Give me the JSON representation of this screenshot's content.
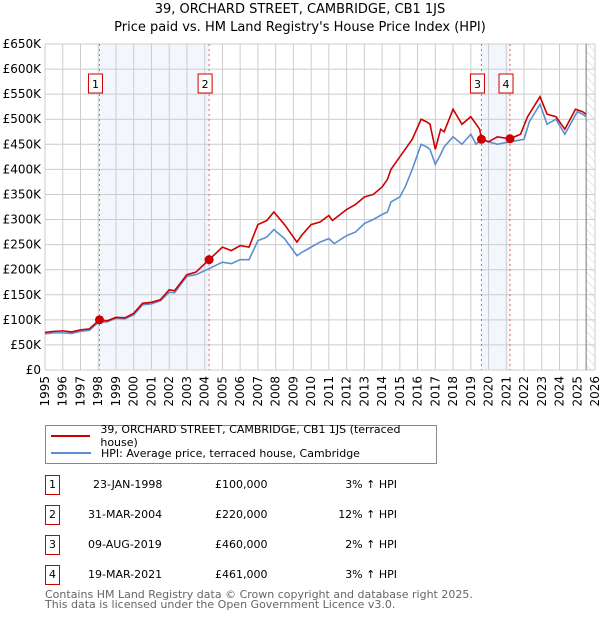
{
  "chart_data": {
    "type": "line",
    "title": "39, ORCHARD STREET, CAMBRIDGE, CB1 1JS",
    "subtitle": "Price paid vs. HM Land Registry's House Price Index (HPI)",
    "ylim": [
      0,
      650000
    ],
    "xlim": [
      1995,
      2026
    ],
    "y_ticks": [
      0,
      50000,
      100000,
      150000,
      200000,
      250000,
      300000,
      350000,
      400000,
      450000,
      500000,
      550000,
      600000,
      650000
    ],
    "y_tick_labels": [
      "£0",
      "£50K",
      "£100K",
      "£150K",
      "£200K",
      "£250K",
      "£300K",
      "£350K",
      "£400K",
      "£450K",
      "£500K",
      "£550K",
      "£600K",
      "£650K"
    ],
    "x_ticks": [
      "1995",
      "1996",
      "1997",
      "1998",
      "1999",
      "2000",
      "2001",
      "2002",
      "2003",
      "2004",
      "2005",
      "2006",
      "2007",
      "2008",
      "2009",
      "2010",
      "2011",
      "2012",
      "2013",
      "2014",
      "2015",
      "2016",
      "2017",
      "2018",
      "2019",
      "2020",
      "2021",
      "2022",
      "2023",
      "2024",
      "2025",
      "2026"
    ],
    "grid": true,
    "forecast_start": 2025.5,
    "series": [
      {
        "name": "39, ORCHARD STREET, CAMBRIDGE, CB1 1JS (terraced house)",
        "color": "#cc0000",
        "x": [
          1995,
          1995.5,
          1996,
          1996.5,
          1997,
          1997.5,
          1998.07,
          1998.5,
          1999,
          1999.5,
          2000,
          2000.5,
          2001,
          2001.5,
          2002,
          2002.3,
          2003,
          2003.5,
          2004.25,
          2005,
          2005.5,
          2006,
          2006.5,
          2007,
          2007.5,
          2007.9,
          2008.5,
          2009.2,
          2009.5,
          2010,
          2010.5,
          2011,
          2011.2,
          2012,
          2012.5,
          2013,
          2013.5,
          2014,
          2014.3,
          2014.5,
          2015,
          2015.3,
          2015.7,
          2016.2,
          2016.5,
          2016.7,
          2017,
          2017.3,
          2017.5,
          2018,
          2018.5,
          2019,
          2019.5,
          2019.6,
          2020,
          2020.5,
          2021.2,
          2021.8,
          2022.2,
          2022.9,
          2023.3,
          2023.8,
          2024.3,
          2024.9,
          2025.3,
          2025.5
        ],
        "y": [
          75000,
          77000,
          78000,
          76000,
          80000,
          82000,
          100000,
          98000,
          105000,
          104000,
          113000,
          133000,
          135000,
          140000,
          160000,
          158000,
          190000,
          195000,
          220000,
          245000,
          238000,
          248000,
          245000,
          290000,
          298000,
          315000,
          290000,
          255000,
          270000,
          290000,
          295000,
          308000,
          298000,
          320000,
          330000,
          345000,
          350000,
          365000,
          380000,
          400000,
          425000,
          440000,
          460000,
          500000,
          495000,
          490000,
          440000,
          480000,
          475000,
          520000,
          490000,
          505000,
          480000,
          460000,
          455000,
          465000,
          461000,
          470000,
          505000,
          545000,
          510000,
          505000,
          480000,
          520000,
          515000,
          510000
        ]
      },
      {
        "name": "HPI: Average price, terraced house, Cambridge",
        "color": "#5b8fd0",
        "x": [
          1995,
          1995.5,
          1996,
          1996.5,
          1997,
          1997.5,
          1998,
          1998.5,
          1999,
          1999.5,
          2000,
          2000.5,
          2001,
          2001.5,
          2002,
          2002.3,
          2003,
          2003.5,
          2004,
          2005,
          2005.5,
          2006,
          2006.5,
          2007,
          2007.5,
          2007.9,
          2008.5,
          2009.2,
          2009.5,
          2010,
          2010.5,
          2011,
          2011.3,
          2012,
          2012.5,
          2013,
          2013.5,
          2014,
          2014.3,
          2014.5,
          2015,
          2015.3,
          2015.7,
          2016.2,
          2016.5,
          2016.7,
          2017,
          2017.3,
          2017.5,
          2018,
          2018.5,
          2019,
          2019.3,
          2019.6,
          2020,
          2020.5,
          2021.2,
          2022,
          2022.3,
          2022.9,
          2023.3,
          2023.8,
          2024.3,
          2025,
          2025.3,
          2025.5
        ],
        "y": [
          72000,
          74000,
          74000,
          73000,
          77000,
          79000,
          95000,
          96000,
          103000,
          102000,
          110000,
          130000,
          132000,
          138000,
          155000,
          154000,
          187000,
          190000,
          198000,
          215000,
          212000,
          220000,
          220000,
          258000,
          265000,
          280000,
          262000,
          228000,
          235000,
          245000,
          255000,
          262000,
          252000,
          268000,
          275000,
          292000,
          300000,
          310000,
          315000,
          335000,
          345000,
          365000,
          400000,
          450000,
          445000,
          440000,
          410000,
          430000,
          445000,
          465000,
          450000,
          470000,
          450000,
          460000,
          455000,
          450000,
          455000,
          460000,
          495000,
          530000,
          490000,
          500000,
          470000,
          515000,
          510000,
          505000
        ]
      }
    ],
    "sales": [
      {
        "label": "1",
        "x": 1998.07,
        "y": 100000,
        "date": "23-JAN-1998",
        "price": "£100,000",
        "hpi": "3% ↑ HPI"
      },
      {
        "label": "2",
        "x": 2004.25,
        "y": 220000,
        "date": "31-MAR-2004",
        "price": "£220,000",
        "hpi": "12% ↑ HPI"
      },
      {
        "label": "3",
        "x": 2019.6,
        "y": 460000,
        "date": "09-AUG-2019",
        "price": "£460,000",
        "hpi": "2% ↑ HPI"
      },
      {
        "label": "4",
        "x": 2021.21,
        "y": 461000,
        "date": "19-MAR-2021",
        "price": "£461,000",
        "hpi": "3% ↑ HPI"
      }
    ],
    "shaded_ranges": [
      [
        1998.07,
        2004.25
      ],
      [
        2019.6,
        2021.21
      ]
    ]
  },
  "footer": {
    "line1": "Contains HM Land Registry data © Crown copyright and database right 2025.",
    "line2": "This data is licensed under the Open Government Licence v3.0."
  }
}
